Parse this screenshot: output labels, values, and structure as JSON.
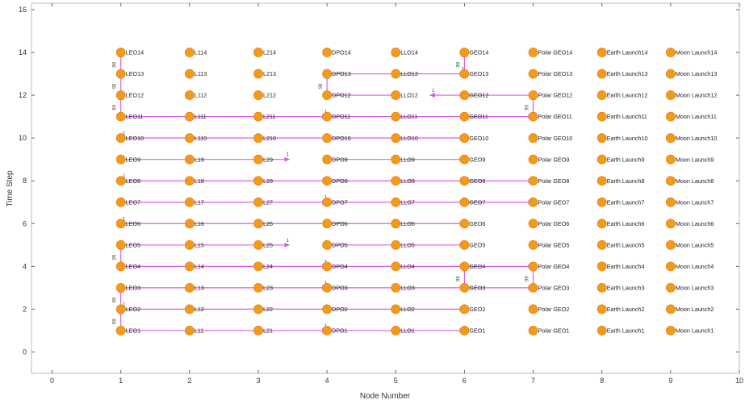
{
  "chart_data": {
    "type": "scatter",
    "title": "",
    "xlabel": "Node Number",
    "ylabel": "Time Step",
    "xlim": [
      -0.3,
      10
    ],
    "ylim": [
      -1,
      16.3
    ],
    "xticks": [
      0,
      1,
      2,
      3,
      4,
      5,
      6,
      7,
      8,
      9,
      10
    ],
    "yticks": [
      0,
      2,
      4,
      6,
      8,
      10,
      12,
      14,
      16
    ],
    "grid": false,
    "colors": {
      "node": "#f29a1a",
      "node_edge": "#e07e10",
      "arc": "#d65ee6",
      "axis": "#444444",
      "frame": "#bbbbbb"
    },
    "columns": [
      {
        "x": 1,
        "prefix": "LEO"
      },
      {
        "x": 2,
        "prefix": "L1"
      },
      {
        "x": 3,
        "prefix": "L2"
      },
      {
        "x": 4,
        "prefix": "DPO"
      },
      {
        "x": 5,
        "prefix": "LLO"
      },
      {
        "x": 6,
        "prefix": "GEO"
      },
      {
        "x": 7,
        "prefix": "Polar GEO"
      },
      {
        "x": 8,
        "prefix": "Earth Launch"
      },
      {
        "x": 9,
        "prefix": "Moon Launch"
      }
    ],
    "time_steps": [
      1,
      2,
      3,
      4,
      5,
      6,
      7,
      8,
      9,
      10,
      11,
      12,
      13,
      14
    ],
    "arcs": [
      {
        "x0": 1,
        "y0": 1,
        "x1": 4,
        "y1": 1,
        "label": "1"
      },
      {
        "x0": 4,
        "y0": 1,
        "x1": 6,
        "y1": 1,
        "label": ""
      },
      {
        "x0": 1,
        "y0": 1,
        "x1": 1,
        "y1": 2,
        "label": "99"
      },
      {
        "x0": 4,
        "y0": 2,
        "x1": 1,
        "y1": 2,
        "label": "1"
      },
      {
        "x0": 4,
        "y0": 2,
        "x1": 6,
        "y1": 2,
        "label": ""
      },
      {
        "x0": 1,
        "y0": 2,
        "x1": 1,
        "y1": 3,
        "label": "99"
      },
      {
        "x0": 1,
        "y0": 3,
        "x1": 4,
        "y1": 3,
        "label": "1"
      },
      {
        "x0": 4,
        "y0": 3,
        "x1": 7,
        "y1": 3,
        "label": ""
      },
      {
        "x0": 7,
        "y0": 3,
        "x1": 7,
        "y1": 4,
        "label": "99"
      },
      {
        "x0": 6,
        "y0": 3,
        "x1": 6,
        "y1": 4,
        "label": "99"
      },
      {
        "x0": 1,
        "y0": 4,
        "x1": 4,
        "y1": 4,
        "label": "1"
      },
      {
        "x0": 4,
        "y0": 4,
        "x1": 7,
        "y1": 4,
        "label": ""
      },
      {
        "x0": 1,
        "y0": 4,
        "x1": 1,
        "y1": 5,
        "label": "99"
      },
      {
        "x0": 1,
        "y0": 5,
        "x1": 3.45,
        "y1": 5,
        "label": "1"
      },
      {
        "x0": 4,
        "y0": 5,
        "x1": 6,
        "y1": 5,
        "label": ""
      },
      {
        "x0": 4,
        "y0": 6,
        "x1": 1,
        "y1": 6,
        "label": "1"
      },
      {
        "x0": 4,
        "y0": 6,
        "x1": 6,
        "y1": 6,
        "label": ""
      },
      {
        "x0": 1,
        "y0": 7,
        "x1": 4,
        "y1": 7,
        "label": "1"
      },
      {
        "x0": 4,
        "y0": 7,
        "x1": 7,
        "y1": 7,
        "label": ""
      },
      {
        "x0": 4,
        "y0": 8,
        "x1": 1,
        "y1": 8,
        "label": "1"
      },
      {
        "x0": 4,
        "y0": 8,
        "x1": 7,
        "y1": 8,
        "label": ""
      },
      {
        "x0": 1,
        "y0": 9,
        "x1": 3.45,
        "y1": 9,
        "label": "1"
      },
      {
        "x0": 4,
        "y0": 9,
        "x1": 6,
        "y1": 9,
        "label": ""
      },
      {
        "x0": 4,
        "y0": 10,
        "x1": 1,
        "y1": 10,
        "label": "1"
      },
      {
        "x0": 4,
        "y0": 10,
        "x1": 6,
        "y1": 10,
        "label": ""
      },
      {
        "x0": 1,
        "y0": 11,
        "x1": 4,
        "y1": 11,
        "label": "1"
      },
      {
        "x0": 4,
        "y0": 11,
        "x1": 7,
        "y1": 11,
        "label": ""
      },
      {
        "x0": 7,
        "y0": 11,
        "x1": 7,
        "y1": 12,
        "label": "99"
      },
      {
        "x0": 1,
        "y0": 11,
        "x1": 1,
        "y1": 12,
        "label": "99"
      },
      {
        "x0": 1,
        "y0": 12,
        "x1": 1,
        "y1": 13,
        "label": "99"
      },
      {
        "x0": 1,
        "y0": 13,
        "x1": 1,
        "y1": 14,
        "label": "99"
      },
      {
        "x0": 7,
        "y0": 12,
        "x1": 5.5,
        "y1": 12,
        "label": "1"
      },
      {
        "x0": 4,
        "y0": 12,
        "x1": 5,
        "y1": 12,
        "label": ""
      },
      {
        "x0": 4,
        "y0": 12,
        "x1": 4,
        "y1": 13,
        "label": "99"
      },
      {
        "x0": 4,
        "y0": 13,
        "x1": 6,
        "y1": 13,
        "label": "1"
      },
      {
        "x0": 6,
        "y0": 13,
        "x1": 6,
        "y1": 14,
        "label": "99"
      }
    ]
  }
}
